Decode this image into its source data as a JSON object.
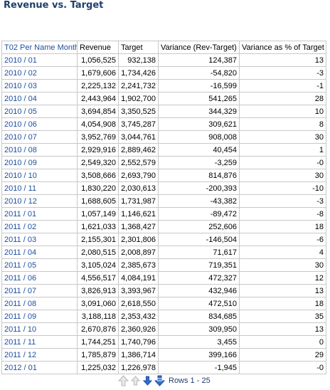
{
  "title": "Revenue vs. Target",
  "table": {
    "columns": [
      "T02 Per Name Month",
      "Revenue",
      "Target",
      "Variance (Rev-Target)",
      "Variance as % of Target"
    ],
    "rows": [
      [
        "2010 / 01",
        "1,056,525",
        "932,138",
        "124,387",
        "13"
      ],
      [
        "2010 / 02",
        "1,679,606",
        "1,734,426",
        "-54,820",
        "-3"
      ],
      [
        "2010 / 03",
        "2,225,132",
        "2,241,732",
        "-16,599",
        "-1"
      ],
      [
        "2010 / 04",
        "2,443,964",
        "1,902,700",
        "541,265",
        "28"
      ],
      [
        "2010 / 05",
        "3,694,854",
        "3,350,525",
        "344,329",
        "10"
      ],
      [
        "2010 / 06",
        "4,054,908",
        "3,745,287",
        "309,621",
        "8"
      ],
      [
        "2010 / 07",
        "3,952,769",
        "3,044,761",
        "908,008",
        "30"
      ],
      [
        "2010 / 08",
        "2,929,916",
        "2,889,462",
        "40,454",
        "1"
      ],
      [
        "2010 / 09",
        "2,549,320",
        "2,552,579",
        "-3,259",
        "-0"
      ],
      [
        "2010 / 10",
        "3,508,666",
        "2,693,790",
        "814,876",
        "30"
      ],
      [
        "2010 / 11",
        "1,830,220",
        "2,030,613",
        "-200,393",
        "-10"
      ],
      [
        "2010 / 12",
        "1,688,605",
        "1,731,987",
        "-43,382",
        "-3"
      ],
      [
        "2011 / 01",
        "1,057,149",
        "1,146,621",
        "-89,472",
        "-8"
      ],
      [
        "2011 / 02",
        "1,621,033",
        "1,368,427",
        "252,606",
        "18"
      ],
      [
        "2011 / 03",
        "2,155,301",
        "2,301,806",
        "-146,504",
        "-6"
      ],
      [
        "2011 / 04",
        "2,080,515",
        "2,008,897",
        "71,617",
        "4"
      ],
      [
        "2011 / 05",
        "3,105,024",
        "2,385,673",
        "719,351",
        "30"
      ],
      [
        "2011 / 06",
        "4,556,517",
        "4,084,191",
        "472,327",
        "12"
      ],
      [
        "2011 / 07",
        "3,826,913",
        "3,393,967",
        "432,946",
        "13"
      ],
      [
        "2011 / 08",
        "3,091,060",
        "2,618,550",
        "472,510",
        "18"
      ],
      [
        "2011 / 09",
        "3,188,118",
        "2,353,432",
        "834,685",
        "35"
      ],
      [
        "2011 / 10",
        "2,670,876",
        "2,360,926",
        "309,950",
        "13"
      ],
      [
        "2011 / 11",
        "1,744,251",
        "1,740,796",
        "3,455",
        "0"
      ],
      [
        "2011 / 12",
        "1,785,879",
        "1,386,714",
        "399,166",
        "29"
      ],
      [
        "2012 / 01",
        "1,225,032",
        "1,226,978",
        "-1,945",
        "-0"
      ]
    ]
  },
  "pager": {
    "rows_label": "Rows 1 - 25",
    "icons": [
      "page-up-icon",
      "row-up-icon",
      "row-down-icon",
      "page-down-icon"
    ]
  },
  "colors": {
    "title": "#1f3f6b",
    "link": "#1f4fa0",
    "border": "#c8c8c8",
    "arrow_disabled": "#c0c0c0",
    "arrow_active": "#2f6fd0"
  }
}
